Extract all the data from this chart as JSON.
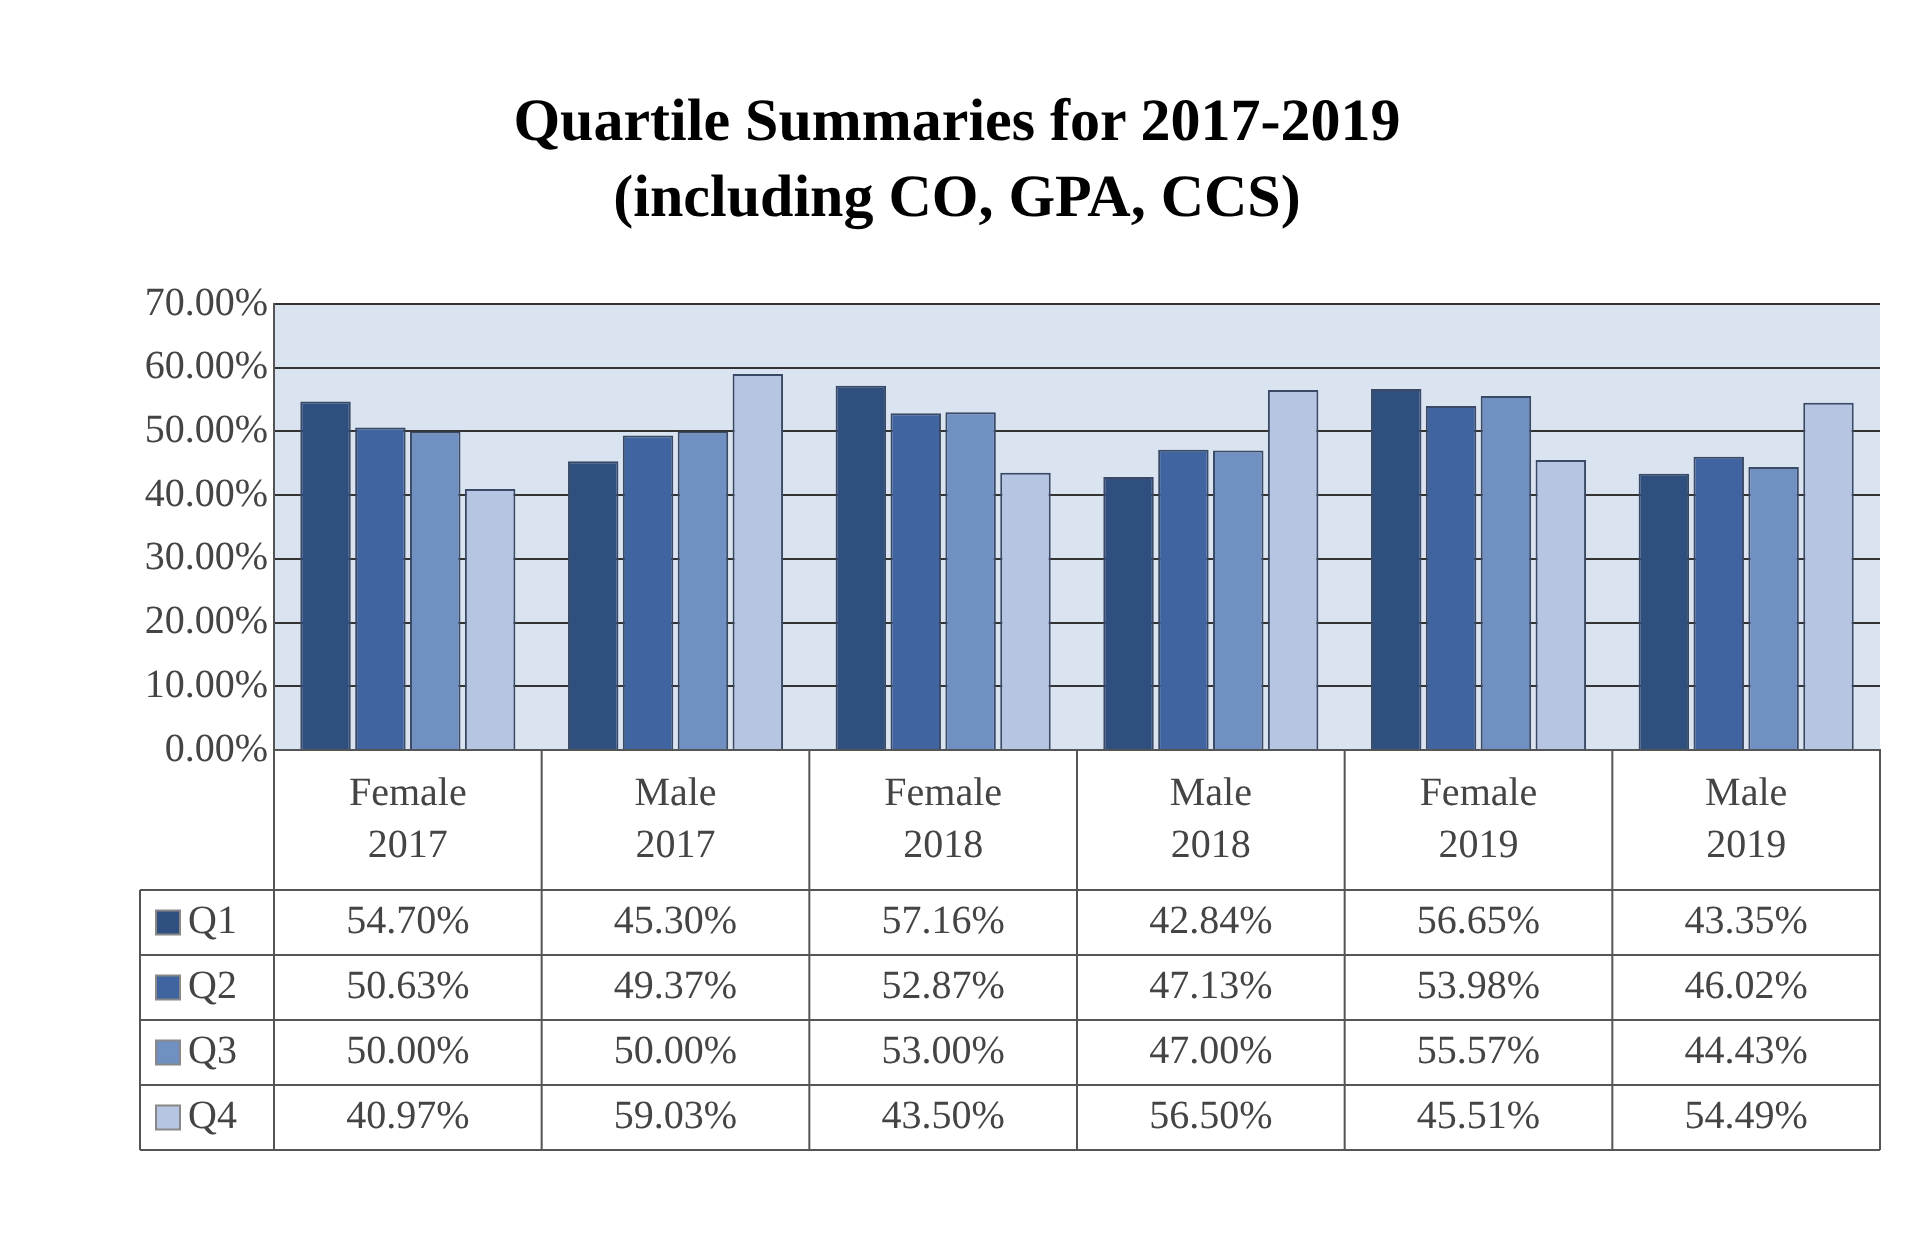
{
  "chart_data": {
    "type": "bar",
    "title": "Quartile Summaries for 2017-2019",
    "subtitle": "(including CO, GPA, CCS)",
    "categories": [
      "Female 2017",
      "Male 2017",
      "Female 2018",
      "Male 2018",
      "Female 2019",
      "Male 2019"
    ],
    "series": [
      {
        "name": "Q1",
        "color": "#2f4f7f",
        "values": [
          54.7,
          45.3,
          57.16,
          42.84,
          56.65,
          43.35
        ],
        "value_labels": [
          "54.70%",
          "45.30%",
          "57.16%",
          "42.84%",
          "56.65%",
          "43.35%"
        ]
      },
      {
        "name": "Q2",
        "color": "#3f64a0",
        "values": [
          50.63,
          49.37,
          52.87,
          47.13,
          53.98,
          46.02
        ],
        "value_labels": [
          "50.63%",
          "49.37%",
          "52.87%",
          "47.13%",
          "53.98%",
          "46.02%"
        ]
      },
      {
        "name": "Q3",
        "color": "#7190c2",
        "values": [
          50,
          50,
          53,
          47,
          55.57,
          44.43
        ],
        "value_labels": [
          "50.00%",
          "50.00%",
          "53.00%",
          "47.00%",
          "55.57%",
          "44.43%"
        ]
      },
      {
        "name": "Q4",
        "color": "#b6c6e2",
        "values": [
          40.97,
          59.03,
          43.5,
          56.5,
          45.51,
          54.49
        ],
        "value_labels": [
          "40.97%",
          "59.03%",
          "43.50%",
          "56.50%",
          "45.51%",
          "54.49%"
        ]
      }
    ],
    "ylim": [
      0,
      70
    ],
    "yticks": [
      {
        "value": 0,
        "label": "0.00%"
      },
      {
        "value": 10,
        "label": "10.00%"
      },
      {
        "value": 20,
        "label": "20.00%"
      },
      {
        "value": 30,
        "label": "30.00%"
      },
      {
        "value": 40,
        "label": "40.00%"
      },
      {
        "value": 50,
        "label": "50.00%"
      },
      {
        "value": 60,
        "label": "60.00%"
      },
      {
        "value": 70,
        "label": "70.00%"
      }
    ],
    "grid": "y",
    "legend": "bottom",
    "data_labels": true
  }
}
